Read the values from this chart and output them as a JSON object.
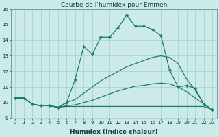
{
  "title": "Courbe de l'humidex pour Emmen",
  "xlabel": "Humidex (Indice chaleur)",
  "bg_color": "#cceae8",
  "grid_color": "#aad4d0",
  "line_color": "#1a7a6e",
  "xlim": [
    -0.5,
    23.5
  ],
  "ylim": [
    9,
    16
  ],
  "yticks": [
    9,
    10,
    11,
    12,
    13,
    14,
    15,
    16
  ],
  "xticks": [
    0,
    1,
    2,
    3,
    4,
    5,
    6,
    7,
    8,
    9,
    10,
    11,
    12,
    13,
    14,
    15,
    16,
    17,
    18,
    19,
    20,
    21,
    22,
    23
  ],
  "line1_x": [
    0,
    1,
    2,
    3,
    4,
    5,
    6,
    7,
    8,
    9,
    10,
    11,
    12,
    13,
    14,
    15,
    16,
    17,
    18,
    19,
    20,
    21,
    22,
    23
  ],
  "line1_y": [
    10.3,
    10.3,
    9.9,
    9.8,
    9.8,
    9.7,
    10.0,
    11.5,
    13.6,
    13.1,
    14.2,
    14.2,
    14.8,
    15.6,
    14.9,
    14.9,
    14.7,
    14.3,
    12.1,
    11.0,
    11.1,
    10.9,
    9.9,
    9.55
  ],
  "line2_x": [
    0,
    1,
    2,
    3,
    4,
    5,
    6,
    7,
    8,
    9,
    10,
    11,
    12,
    13,
    14,
    15,
    16,
    17,
    18,
    19,
    20,
    21,
    22,
    23
  ],
  "line2_y": [
    10.3,
    10.3,
    9.9,
    9.8,
    9.8,
    9.7,
    10.0,
    10.2,
    10.6,
    11.0,
    11.4,
    11.7,
    12.0,
    12.3,
    12.5,
    12.7,
    12.9,
    13.0,
    12.9,
    12.5,
    11.5,
    10.8,
    9.9,
    9.55
  ],
  "line3_x": [
    0,
    1,
    2,
    3,
    4,
    5,
    6,
    7,
    8,
    9,
    10,
    11,
    12,
    13,
    14,
    15,
    16,
    17,
    18,
    19,
    20,
    21,
    22,
    23
  ],
  "line3_y": [
    10.3,
    10.3,
    9.9,
    9.8,
    9.8,
    9.7,
    9.75,
    9.75,
    9.75,
    9.75,
    9.75,
    9.75,
    9.75,
    9.75,
    9.75,
    9.75,
    9.75,
    9.75,
    9.75,
    9.75,
    9.75,
    9.75,
    9.75,
    9.55
  ],
  "line4_x": [
    0,
    1,
    2,
    3,
    4,
    5,
    6,
    7,
    8,
    9,
    10,
    11,
    12,
    13,
    14,
    15,
    16,
    17,
    18,
    19,
    20,
    21,
    22,
    23
  ],
  "line4_y": [
    10.3,
    10.3,
    9.9,
    9.8,
    9.8,
    9.7,
    9.8,
    9.85,
    10.0,
    10.15,
    10.35,
    10.55,
    10.75,
    10.9,
    11.05,
    11.1,
    11.2,
    11.25,
    11.2,
    11.0,
    10.7,
    10.3,
    9.9,
    9.55
  ],
  "title_fontsize": 6.5,
  "xlabel_fontsize": 6.5,
  "tick_fontsize": 5.0
}
